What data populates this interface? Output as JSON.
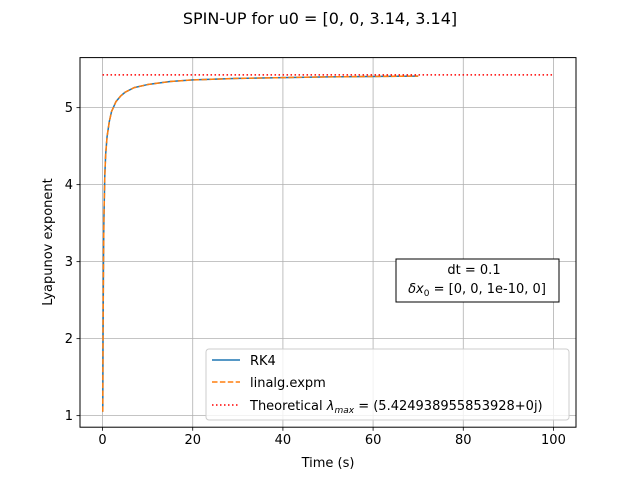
{
  "chart_data": {
    "type": "line",
    "title": "SPIN-UP for u0 = [0, 0, 3.14, 3.14]",
    "xlabel": "Time (s)",
    "ylabel": "Lyapunov exponent",
    "xlim": [
      -5,
      105
    ],
    "ylim": [
      0.85,
      5.65
    ],
    "xticks": [
      0,
      20,
      40,
      60,
      80,
      100
    ],
    "yticks": [
      1,
      2,
      3,
      4,
      5
    ],
    "grid": true,
    "legend_position": "lower-right",
    "series": [
      {
        "name": "RK4",
        "color": "#1f77b4",
        "style": "solid",
        "x": [
          0.05,
          0.1,
          0.2,
          0.3,
          0.5,
          0.7,
          1,
          1.5,
          2,
          3,
          4,
          5,
          7,
          10,
          15,
          20,
          30,
          40,
          50,
          60,
          70
        ],
        "y": [
          1.05,
          1.9,
          2.95,
          3.55,
          4.12,
          4.4,
          4.62,
          4.82,
          4.95,
          5.08,
          5.15,
          5.2,
          5.26,
          5.3,
          5.34,
          5.36,
          5.38,
          5.39,
          5.4,
          5.405,
          5.41
        ]
      },
      {
        "name": "linalg.expm",
        "color": "#ff7f0e",
        "style": "dashed",
        "x": [
          0.05,
          0.1,
          0.2,
          0.3,
          0.5,
          0.7,
          1,
          1.5,
          2,
          3,
          4,
          5,
          7,
          10,
          15,
          20,
          30,
          40,
          50,
          60,
          70
        ],
        "y": [
          1.05,
          1.9,
          2.95,
          3.55,
          4.12,
          4.4,
          4.62,
          4.82,
          4.95,
          5.08,
          5.15,
          5.2,
          5.26,
          5.3,
          5.34,
          5.36,
          5.38,
          5.39,
          5.4,
          5.405,
          5.41
        ]
      },
      {
        "name_prefix": "Theoretical ",
        "name_symbol": "λ",
        "name_subscript": "max",
        "name_suffix": " = (5.424938955853928+0j)",
        "color": "#ff0000",
        "style": "dotted",
        "x": [
          0,
          100
        ],
        "y": [
          5.425,
          5.425
        ]
      }
    ],
    "annotation": {
      "line1": "dt = 0.1",
      "line2_symbol": "δx",
      "line2_subscript": "0",
      "line2_rest": " = [0, 0, 1e-10, 0]"
    }
  }
}
